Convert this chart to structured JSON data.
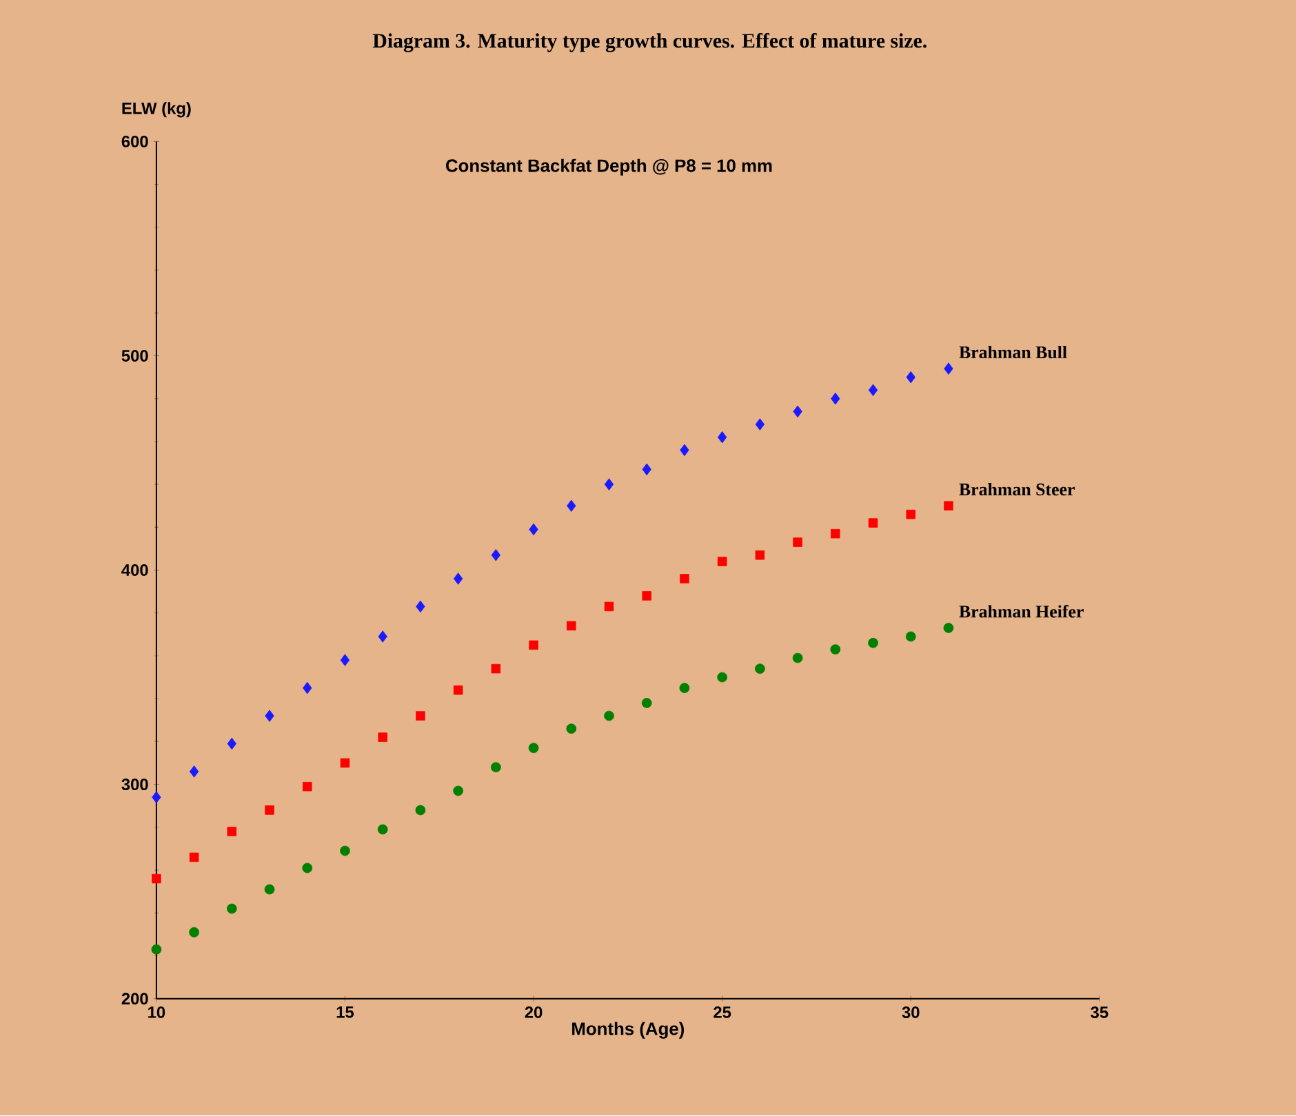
{
  "chart_data": {
    "type": "scatter",
    "title": "Diagram 3. Maturity type growth curves. Effect of mature size.",
    "xlabel": "Months (Age)",
    "ylabel": "ELW (kg)",
    "annotations": [
      "Constant Backfat Depth @ P8 = 10 mm"
    ],
    "x": [
      10,
      11,
      12,
      13,
      14,
      15,
      16,
      17,
      18,
      19,
      20,
      21,
      22,
      23,
      24,
      25,
      26,
      27,
      28,
      29,
      30,
      31
    ],
    "series": [
      {
        "name": "Brahman Bull",
        "color": "#1a1aff",
        "marker": "diamond",
        "values": [
          294,
          306,
          319,
          332,
          345,
          358,
          369,
          383,
          396,
          407,
          419,
          430,
          440,
          447,
          456,
          462,
          468,
          474,
          480,
          484,
          490,
          494
        ]
      },
      {
        "name": "Brahman Steer",
        "color": "#ff0000",
        "marker": "square",
        "values": [
          256,
          266,
          278,
          288,
          299,
          310,
          322,
          332,
          344,
          354,
          365,
          374,
          383,
          388,
          396,
          404,
          407,
          413,
          417,
          422,
          426,
          430
        ]
      },
      {
        "name": "Brahman Heifer",
        "color": "#008000",
        "marker": "circle",
        "values": [
          223,
          231,
          242,
          251,
          261,
          269,
          279,
          288,
          297,
          308,
          317,
          326,
          332,
          338,
          345,
          350,
          354,
          359,
          363,
          366,
          369,
          373
        ]
      }
    ],
    "xlim": [
      10,
      35
    ],
    "xticks": [
      10,
      15,
      20,
      25,
      30,
      35
    ],
    "ylim": [
      200,
      600
    ],
    "yticks": [
      200,
      300,
      400,
      500,
      600
    ]
  }
}
